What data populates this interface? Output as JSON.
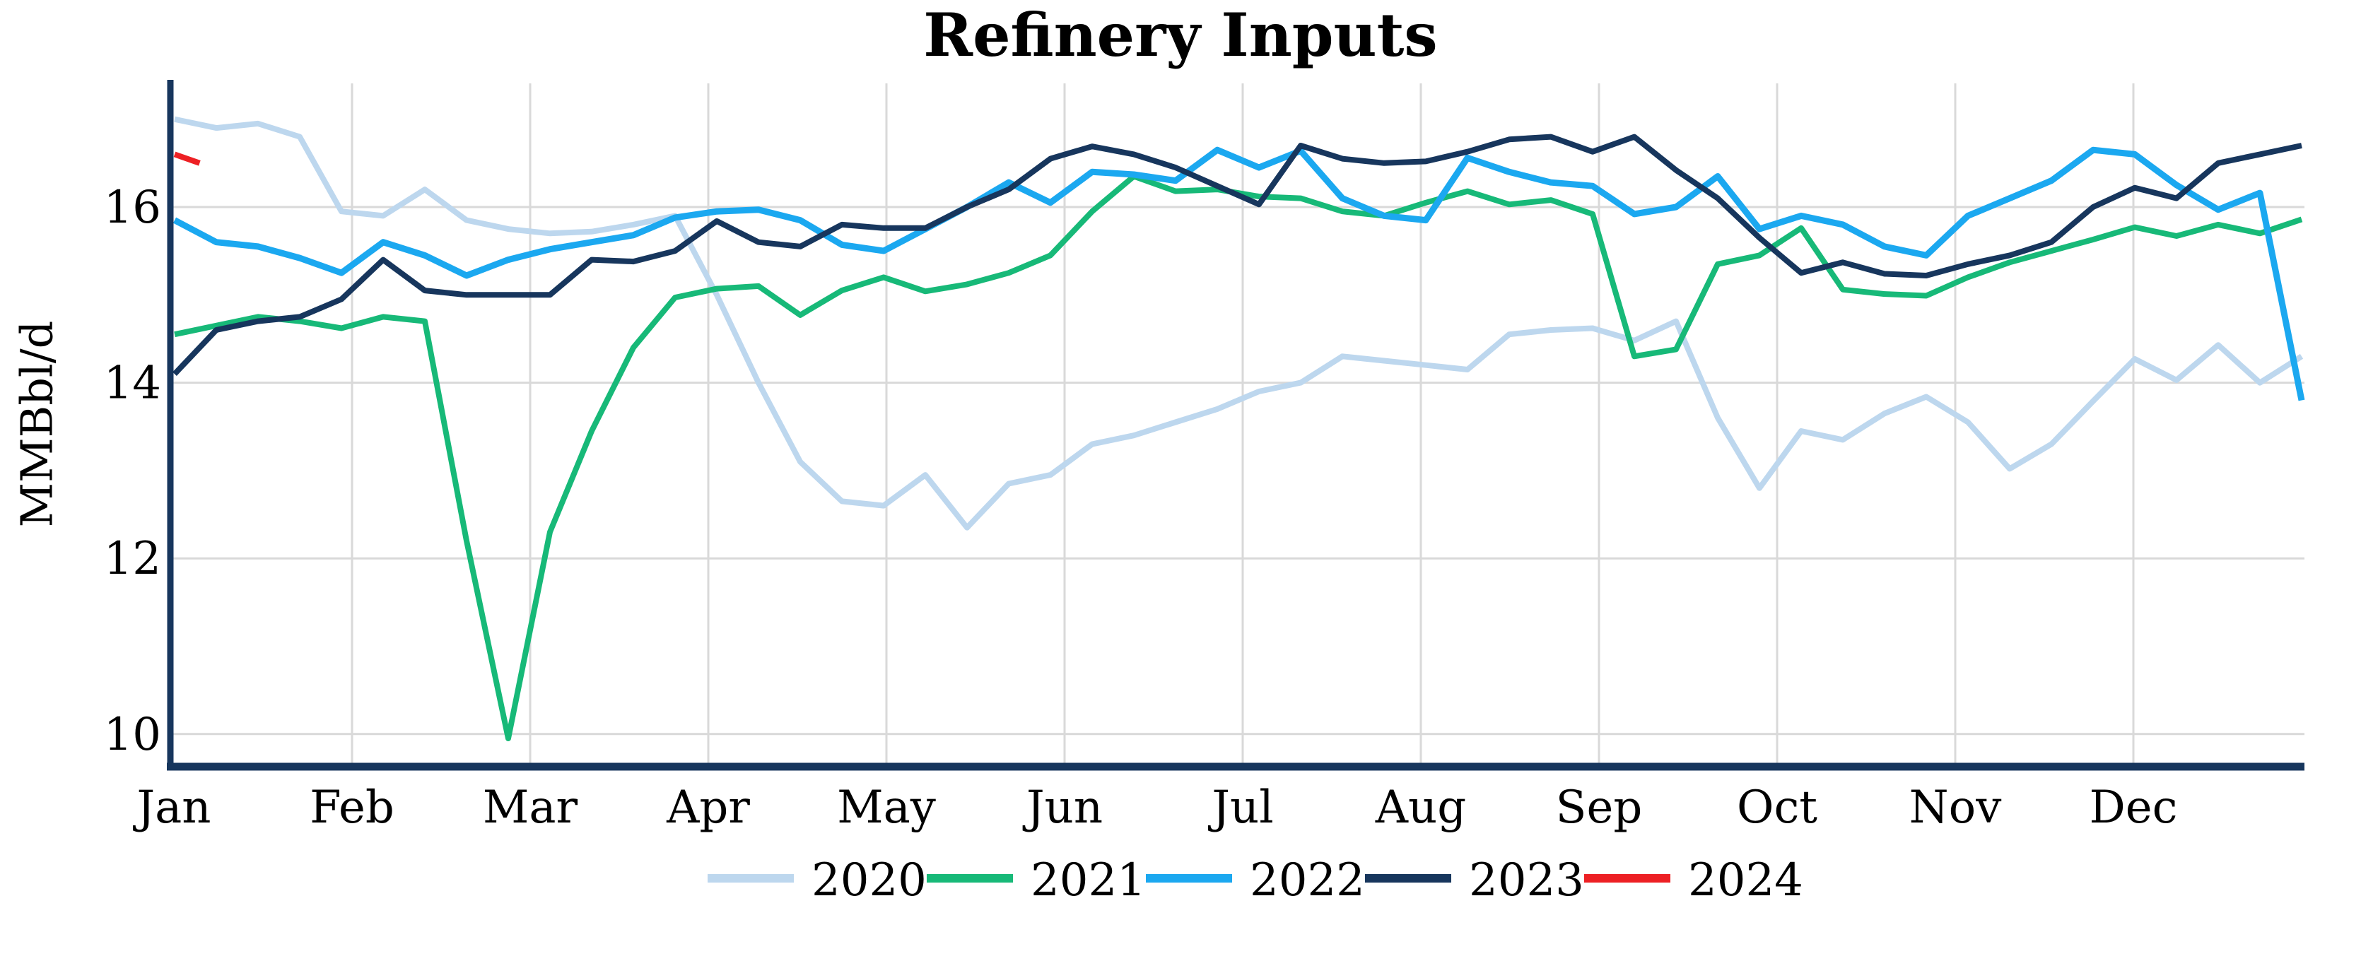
{
  "title": "Refinery Inputs",
  "y_axis": {
    "label": "MMBbl/d",
    "ticks": [
      16,
      14,
      12,
      10
    ],
    "min": 9.6,
    "max": 17.4
  },
  "x_axis": {
    "months": [
      "Jan",
      "Feb",
      "Mar",
      "Apr",
      "May",
      "Jun",
      "Jul",
      "Aug",
      "Sep",
      "Oct",
      "Nov",
      "Dec"
    ]
  },
  "legend": {
    "position": "bottom-center",
    "entries": [
      "2020",
      "2021",
      "2022",
      "2023",
      "2024"
    ]
  },
  "colors": {
    "axis": "#17365D",
    "grid": "#D9D9D9",
    "background": "#FFFFFF"
  },
  "chart_data": {
    "type": "line",
    "title": "Refinery Inputs",
    "ylabel": "MMBbl/d",
    "ylim": [
      9.6,
      17.4
    ],
    "x_unit": "week of year (weekly data, Jan-Dec)",
    "grid": "on",
    "categories": [
      "Jan",
      "Feb",
      "Mar",
      "Apr",
      "May",
      "Jun",
      "Jul",
      "Aug",
      "Sep",
      "Oct",
      "Nov",
      "Dec"
    ],
    "series": [
      {
        "name": "2020",
        "color": "#BDD7EE",
        "values": [
          17.0,
          16.9,
          16.95,
          16.8,
          15.95,
          15.9,
          16.2,
          15.85,
          15.75,
          15.7,
          15.72,
          15.8,
          15.9,
          15.0,
          14.0,
          13.1,
          12.65,
          12.6,
          12.95,
          12.35,
          12.85,
          12.95,
          13.3,
          13.4,
          13.55,
          13.7,
          13.9,
          14.0,
          14.3,
          14.25,
          14.2,
          14.15,
          14.55,
          14.6,
          14.62,
          14.48,
          14.7,
          13.6,
          12.8,
          13.45,
          13.35,
          13.65,
          13.84,
          13.55,
          13.02,
          13.3,
          13.79,
          14.27,
          14.03,
          14.43,
          14.0,
          14.3
        ]
      },
      {
        "name": "2021",
        "color": "#17B978",
        "values": [
          14.55,
          14.65,
          14.75,
          14.7,
          14.62,
          14.75,
          14.7,
          12.2,
          9.95,
          12.3,
          13.45,
          14.4,
          14.97,
          15.07,
          15.1,
          14.77,
          15.05,
          15.2,
          15.04,
          15.12,
          15.25,
          15.45,
          15.95,
          16.35,
          16.18,
          16.2,
          16.12,
          16.1,
          15.95,
          15.9,
          16.05,
          16.18,
          16.03,
          16.08,
          15.92,
          14.3,
          14.38,
          15.35,
          15.45,
          15.76,
          15.06,
          15.01,
          14.99,
          15.2,
          15.37,
          15.5,
          15.63,
          15.77,
          15.67,
          15.8,
          15.7,
          15.86
        ]
      },
      {
        "name": "2022",
        "color": "#1BA8F0",
        "values": [
          15.85,
          15.6,
          15.55,
          15.42,
          15.25,
          15.6,
          15.45,
          15.22,
          15.4,
          15.52,
          15.6,
          15.68,
          15.88,
          15.95,
          15.97,
          15.85,
          15.57,
          15.5,
          15.75,
          16.0,
          16.28,
          16.05,
          16.4,
          16.37,
          16.3,
          16.65,
          16.45,
          16.64,
          16.1,
          15.9,
          15.85,
          16.56,
          16.4,
          16.28,
          16.24,
          15.92,
          16.0,
          16.35,
          15.75,
          15.9,
          15.8,
          15.55,
          15.45,
          15.9,
          16.1,
          16.3,
          16.65,
          16.6,
          16.25,
          15.97,
          16.16,
          13.8
        ]
      },
      {
        "name": "2023",
        "color": "#17365D",
        "values": [
          14.1,
          14.6,
          14.7,
          14.75,
          14.95,
          15.4,
          15.05,
          15.0,
          15.0,
          15.0,
          15.4,
          15.38,
          15.5,
          15.84,
          15.6,
          15.55,
          15.8,
          15.76,
          15.76,
          16.0,
          16.2,
          16.55,
          16.69,
          16.6,
          16.45,
          16.24,
          16.03,
          16.7,
          16.55,
          16.5,
          16.52,
          16.63,
          16.77,
          16.8,
          16.63,
          16.8,
          16.42,
          16.1,
          15.65,
          15.25,
          15.37,
          15.24,
          15.22,
          15.35,
          15.45,
          15.6,
          16.0,
          16.22,
          16.1,
          16.5,
          16.6,
          16.7
        ]
      },
      {
        "name": "2024",
        "color": "#ED2024",
        "values": [
          16.6,
          16.5
        ],
        "x_weeks": [
          0,
          0.6
        ]
      }
    ]
  }
}
